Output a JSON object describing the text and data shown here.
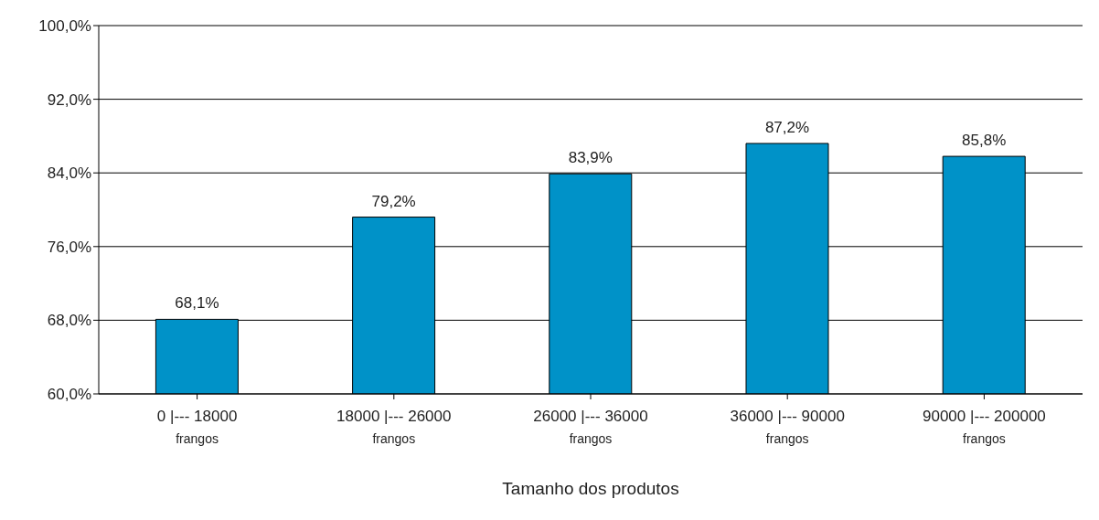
{
  "chart_data": {
    "type": "bar",
    "xlabel": "Tamanho dos produtos",
    "categories": [
      "0 |--- 18000\nfrangos",
      "18000 |--- 26000\nfrangos",
      "26000 |--- 36000\nfrangos",
      "36000 |--- 90000\nfrangos",
      "90000 |--- 200000\nfrangos"
    ],
    "values": [
      68.1,
      79.2,
      83.9,
      87.2,
      85.8
    ],
    "value_labels": [
      "68,1%",
      "79,2%",
      "83,9%",
      "87,2%",
      "85,8%"
    ],
    "color": "#0092c8",
    "ylim": [
      60,
      100
    ],
    "yticks": [
      {
        "value": 60,
        "label": "60,0%"
      },
      {
        "value": 68,
        "label": "68,0%"
      },
      {
        "value": 76,
        "label": "76,0%"
      },
      {
        "value": 84,
        "label": "84,0%"
      },
      {
        "value": 92,
        "label": "92,0%"
      },
      {
        "value": 100,
        "label": "100,0%"
      }
    ],
    "grid": "y"
  }
}
